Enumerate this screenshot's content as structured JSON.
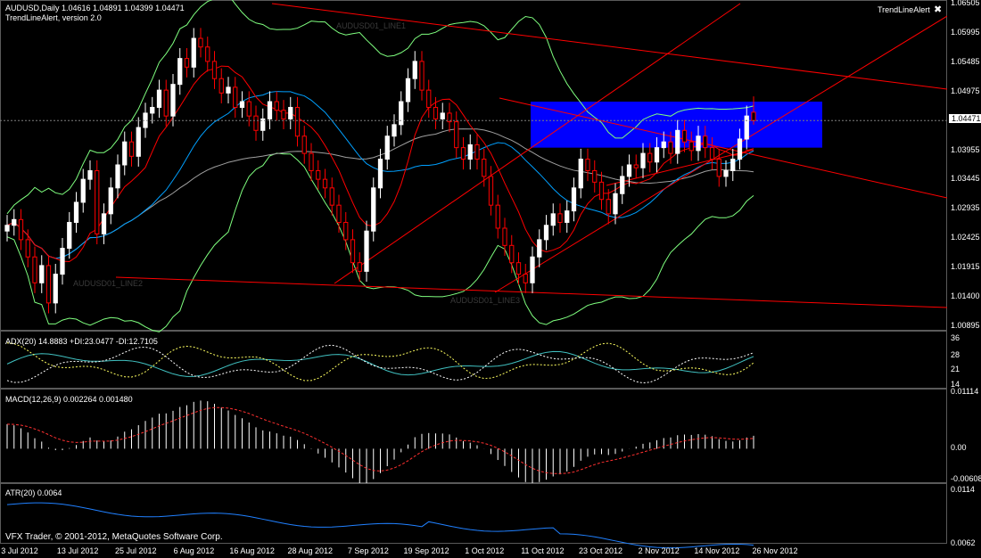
{
  "header": {
    "symbol_line": "AUDUSD,Daily  1.04616 1.04891 1.04399 1.04471",
    "indicator_line": "TrendLineAlert, version 2.0",
    "indicator_name": "TrendLineAlert",
    "close_glyph": "✖"
  },
  "price_pane": {
    "current_price": "1.04471",
    "price_ticks": [
      "1.06505",
      "1.05995",
      "1.05485",
      "1.04975",
      "1.04471",
      "1.03955",
      "1.03445",
      "1.02935",
      "1.02425",
      "1.01915",
      "1.01400",
      "1.00895"
    ],
    "line_labels": [
      "AUDUSD01_LINE2",
      "AUDUSD01_LINE1",
      "AUDUSD01_LINE3"
    ],
    "colors": {
      "up": "#ffffff",
      "down": "#ff0000",
      "zone": "#0000ff",
      "trend": "#ff0000",
      "band": "#7fff7f",
      "ma_fast": "#00a0ff",
      "ma_slow": "#a0a0a0"
    }
  },
  "adx_pane": {
    "title": "ADX(20) 14.8883 +DI:23.0477 -DI:12.7105",
    "ticks": [
      "36",
      "28",
      "21",
      "14"
    ]
  },
  "macd_pane": {
    "title": "MACD(12,26,9) 0.002264 0.001480",
    "ticks": [
      "0.01114",
      "0.00",
      "-0.00608"
    ]
  },
  "atr_pane": {
    "title": "ATR(20) 0.0064",
    "ticks": [
      "0.0114",
      "0.0062"
    ]
  },
  "footer": {
    "copyright": "VFX Trader, © 2001-2012, MetaQuotes Software Corp.",
    "dates": [
      "3 Jul 2012",
      "13 Jul 2012",
      "25 Jul 2012",
      "6 Aug 2012",
      "16 Aug 2012",
      "28 Aug 2012",
      "7 Sep 2012",
      "19 Sep 2012",
      "1 Oct 2012",
      "11 Oct 2012",
      "23 Oct 2012",
      "2 Nov 2012",
      "14 Nov 2012",
      "26 Nov 2012"
    ]
  },
  "chart_data": {
    "type": "candlestick",
    "symbol": "AUDUSD",
    "timeframe": "Daily",
    "ylim": [
      1.00895,
      1.06505
    ],
    "last_bar": {
      "open": 1.04616,
      "high": 1.04891,
      "low": 1.04399,
      "close": 1.04471
    },
    "close_series": [
      1.0265,
      1.0275,
      1.024,
      1.021,
      1.0165,
      1.0195,
      1.013,
      1.018,
      1.0225,
      1.027,
      1.0305,
      1.0345,
      1.036,
      1.025,
      1.0285,
      1.033,
      1.037,
      1.041,
      1.0385,
      1.0435,
      1.046,
      1.047,
      1.05,
      1.0455,
      1.051,
      1.0555,
      1.054,
      1.059,
      1.0575,
      1.055,
      1.052,
      1.0495,
      1.0505,
      1.047,
      1.048,
      1.0455,
      1.043,
      1.045,
      1.048,
      1.0465,
      1.045,
      1.047,
      1.042,
      1.039,
      1.036,
      1.0345,
      1.033,
      1.03,
      1.027,
      1.024,
      1.02,
      1.0185,
      1.0255,
      1.033,
      1.038,
      1.042,
      1.044,
      1.048,
      1.052,
      1.055,
      1.05,
      1.047,
      1.045,
      1.046,
      1.0445,
      1.04,
      1.038,
      1.0405,
      1.038,
      1.035,
      1.03,
      1.026,
      1.023,
      1.02,
      1.018,
      1.0165,
      1.021,
      1.024,
      1.0265,
      1.0285,
      1.027,
      1.029,
      1.033,
      1.038,
      1.036,
      1.034,
      1.031,
      1.0285,
      1.032,
      1.035,
      1.037,
      1.0365,
      1.039,
      1.0375,
      1.04,
      1.041,
      1.039,
      1.043,
      1.041,
      1.0395,
      1.042,
      1.04,
      1.038,
      1.035,
      1.036,
      1.038,
      1.0415,
      1.0455,
      1.0447
    ],
    "zone": {
      "top": 1.048,
      "bottom": 1.04
    }
  }
}
